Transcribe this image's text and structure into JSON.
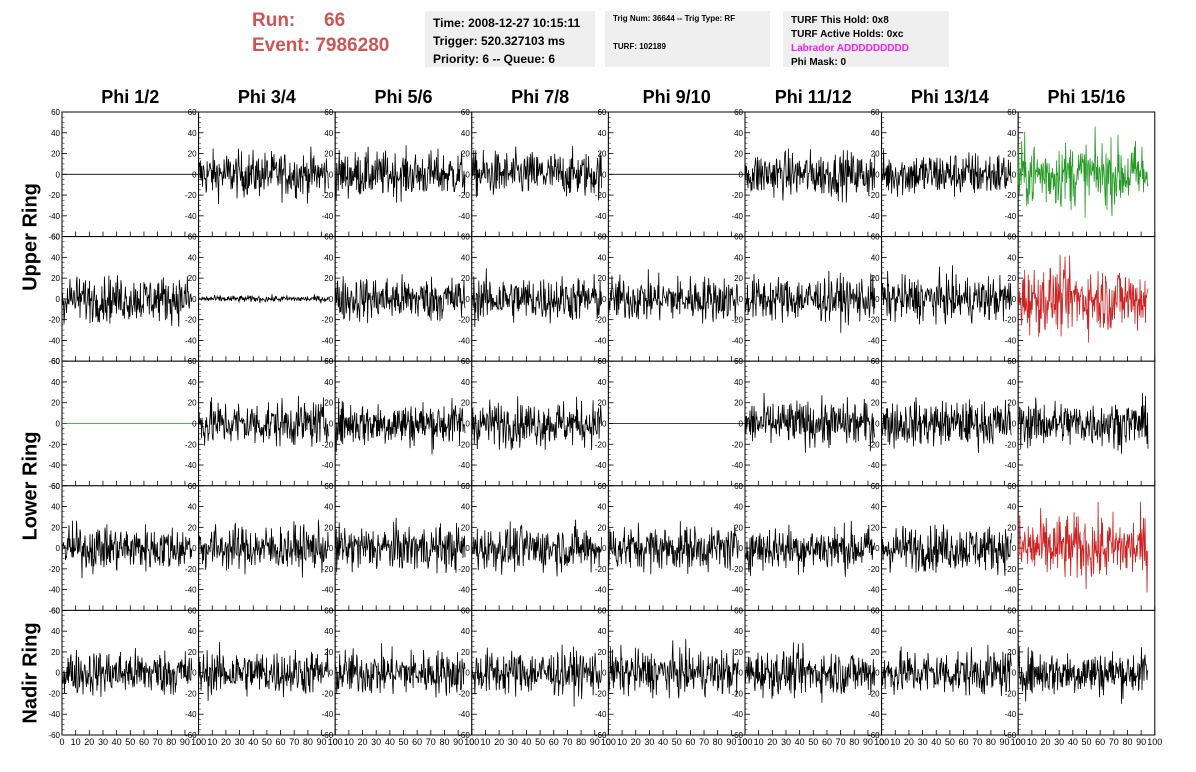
{
  "header": {
    "run_label": "Run:",
    "run_value": "66",
    "event_label": "Event:",
    "event_value": "7986280"
  },
  "info_time": {
    "time": "Time: 2008-12-27 10:15:11",
    "trigger": "Trigger: 520.327103 ms",
    "priority": "Priority: 6 -- Queue: 6"
  },
  "info_trig": {
    "trig": "Trig Num: 36644 -- Trig Type: RF",
    "turf": "TURF: 102189"
  },
  "info_turf": {
    "hold": "TURF This Hold: 0x8",
    "active": "TURF Active Holds: 0xc",
    "labrador": "Labrador ADDDDDDDDD",
    "phimask": "Phi Mask: 0"
  },
  "colors": {
    "header_red": "#cc5555",
    "labrador": "#ee22ee",
    "trace_black": "#000000",
    "trace_green": "#229922",
    "trace_red": "#cc2222"
  },
  "chart_data": {
    "type": "line",
    "columns": [
      "Phi 1/2",
      "Phi 3/4",
      "Phi 5/6",
      "Phi 7/8",
      "Phi 9/10",
      "Phi 11/12",
      "Phi 13/14",
      "Phi 15/16"
    ],
    "ring_labels": [
      {
        "text": "Upper Ring",
        "rows": [
          0,
          1
        ]
      },
      {
        "text": "Lower Ring",
        "rows": [
          2,
          3
        ]
      },
      {
        "text": "Nadir Ring",
        "rows": [
          4,
          4
        ]
      }
    ],
    "xlim": [
      0,
      100
    ],
    "ylim": [
      -60,
      60
    ],
    "x_ticks": [
      0,
      10,
      20,
      30,
      40,
      50,
      60,
      70,
      80,
      90,
      100
    ],
    "x_tick_labels": [
      "0",
      "10",
      "20",
      "30",
      "40",
      "50",
      "60",
      "70",
      "80",
      "90",
      "100"
    ],
    "y_ticks": [
      -60,
      -40,
      -20,
      0,
      20,
      40,
      60
    ],
    "y_tick_labels": [
      "-60",
      "-40",
      "-20",
      "0",
      "20",
      "40",
      "60"
    ],
    "grid": false,
    "traces": [
      [
        "flat",
        "normal",
        "normal",
        "normal",
        "flat",
        "normal",
        "normal",
        "green"
      ],
      [
        "normal",
        "quiet",
        "normal",
        "normal",
        "normal",
        "normal",
        "normal",
        "red"
      ],
      [
        "flatgreen",
        "normal",
        "normal",
        "normal",
        "flat",
        "normal",
        "normal",
        "normal"
      ],
      [
        "normal",
        "normal",
        "normal",
        "normal",
        "normal",
        "normal",
        "normal",
        "red"
      ],
      [
        "normal",
        "normal",
        "normal",
        "normal",
        "normal",
        "normal",
        "normal",
        "normal"
      ]
    ]
  }
}
